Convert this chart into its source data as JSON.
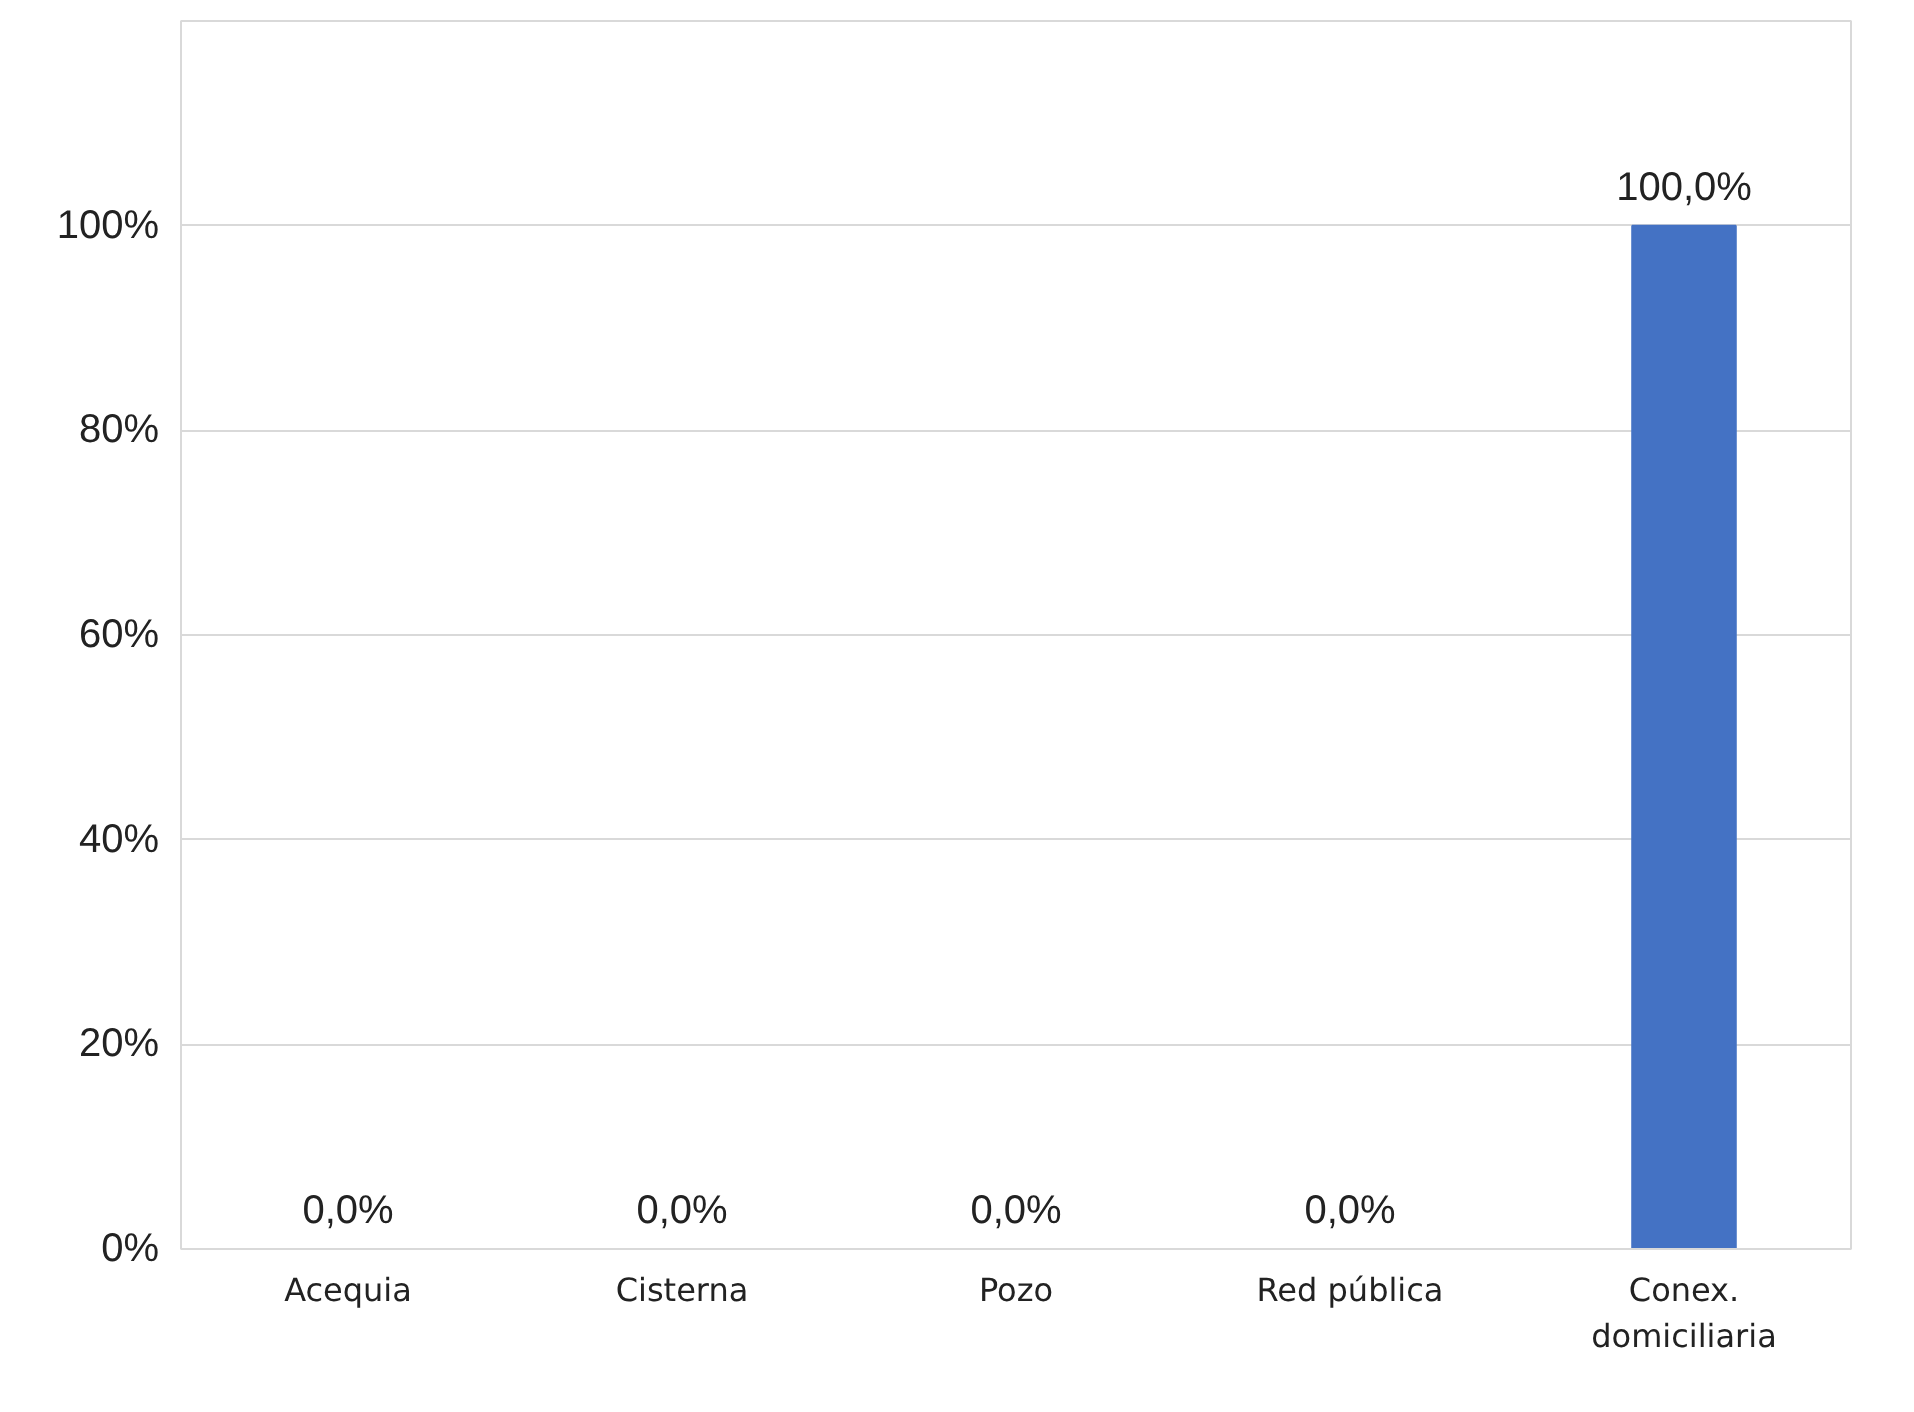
{
  "chart_data": {
    "type": "bar",
    "categories": [
      "Acequia",
      "Cisterna",
      "Pozo",
      "Red pública",
      "Conex. domiciliaria"
    ],
    "values": [
      0,
      0,
      0,
      0,
      100
    ],
    "color": "#4472c4",
    "value_labels": [
      "0,0%",
      "0,0%",
      "0,0%",
      "0,0%",
      "100,0%"
    ],
    "ylim": [
      0,
      120
    ],
    "yticks": [
      {
        "value": 0,
        "label": "0%"
      },
      {
        "value": 20,
        "label": "20%"
      },
      {
        "value": 40,
        "label": "40%"
      },
      {
        "value": 60,
        "label": "60%"
      },
      {
        "value": 80,
        "label": "80%"
      },
      {
        "value": 100,
        "label": "100%"
      }
    ],
    "grid": "y"
  }
}
